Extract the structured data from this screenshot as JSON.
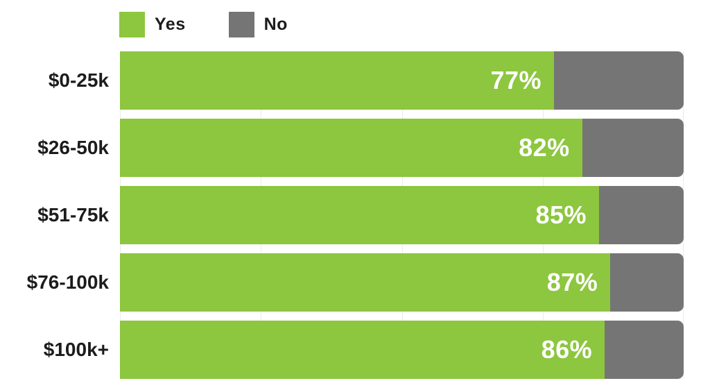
{
  "colors": {
    "yes": "#8DC63F",
    "no": "#757575",
    "gridline": "#eaeaea",
    "text": "#1c1c1c",
    "value_label": "#ffffff",
    "background": "#ffffff"
  },
  "legend": {
    "yes_label": "Yes",
    "no_label": "No"
  },
  "chart_data": {
    "type": "bar",
    "orientation": "horizontal",
    "stacked": true,
    "title": "",
    "xlabel": "",
    "ylabel": "",
    "xlim": [
      0,
      100
    ],
    "legend_position": "top-left",
    "grid": {
      "vertical_lines_percent": [
        0,
        25,
        50,
        75,
        100
      ]
    },
    "categories": [
      "$0-25k",
      "$26-50k",
      "$51-75k",
      "$76-100k",
      "$100k+"
    ],
    "series": [
      {
        "name": "Yes",
        "color": "#8DC63F",
        "values": [
          77,
          82,
          85,
          87,
          86
        ]
      },
      {
        "name": "No",
        "color": "#757575",
        "values": [
          23,
          18,
          15,
          13,
          14
        ]
      }
    ],
    "value_labels": [
      "77%",
      "82%",
      "85%",
      "87%",
      "86%"
    ]
  }
}
